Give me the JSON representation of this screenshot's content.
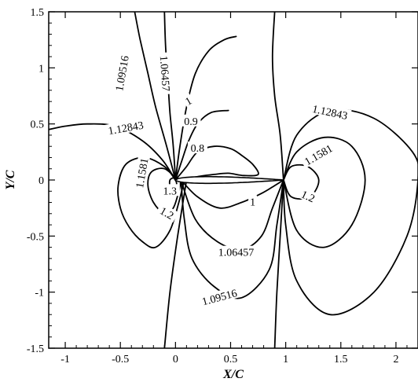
{
  "chart_data": {
    "type": "contour",
    "title": "",
    "xlabel": "X/C",
    "ylabel": "Y/C",
    "xlim": [
      -1.15,
      2.2
    ],
    "ylim": [
      -1.5,
      1.5
    ],
    "x_ticks": [
      "-1",
      "-0.5",
      "0",
      "0.5",
      "1",
      "1.5",
      "2"
    ],
    "y_ticks": [
      "1.5",
      "1",
      "0.5",
      "0",
      "-0.5",
      "-1",
      "-1.5"
    ],
    "grid": false,
    "legend": "none",
    "airfoil": {
      "leading_edge": [
        0.0,
        0.0
      ],
      "trailing_edge": [
        0.98,
        0.0
      ],
      "max_thickness": 0.06
    },
    "contours": [
      {
        "level": "1.06457",
        "points": [
          [
            0.0,
            0.0
          ],
          [
            -0.02,
            0.3
          ],
          [
            -0.05,
            0.6
          ],
          [
            -0.07,
            0.9
          ],
          [
            -0.09,
            1.2
          ],
          [
            -0.1,
            1.5
          ]
        ]
      },
      {
        "level": "1.09516",
        "points": [
          [
            0.0,
            0.0
          ],
          [
            -0.08,
            0.3
          ],
          [
            -0.18,
            0.65
          ],
          [
            -0.25,
            0.95
          ],
          [
            -0.32,
            1.25
          ],
          [
            -0.37,
            1.5
          ]
        ]
      },
      {
        "level": "1.12843",
        "points": [
          [
            0.0,
            0.0
          ],
          [
            -0.12,
            0.18
          ],
          [
            -0.3,
            0.35
          ],
          [
            -0.55,
            0.48
          ],
          [
            -0.8,
            0.5
          ],
          [
            -1.0,
            0.48
          ],
          [
            -1.15,
            0.45
          ]
        ]
      },
      {
        "level": "1.1581",
        "points": [
          [
            0.0,
            0.0
          ],
          [
            -0.1,
            0.12
          ],
          [
            -0.28,
            0.2
          ],
          [
            -0.45,
            0.14
          ],
          [
            -0.52,
            -0.05
          ],
          [
            -0.5,
            -0.25
          ],
          [
            -0.42,
            -0.42
          ],
          [
            -0.3,
            -0.55
          ],
          [
            -0.18,
            -0.6
          ],
          [
            -0.05,
            -0.45
          ],
          [
            0.03,
            -0.2
          ],
          [
            0.08,
            0.0
          ]
        ]
      },
      {
        "level": "1.2",
        "points": [
          [
            0.02,
            0.0
          ],
          [
            -0.1,
            0.1
          ],
          [
            -0.22,
            0.07
          ],
          [
            -0.25,
            -0.05
          ],
          [
            -0.2,
            -0.2
          ],
          [
            -0.1,
            -0.3
          ],
          [
            -0.02,
            -0.25
          ],
          [
            0.03,
            -0.1
          ],
          [
            0.05,
            0.0
          ]
        ]
      },
      {
        "level": "1.3",
        "points": [
          [
            -0.02,
            0.02
          ],
          [
            -0.05,
            0.0
          ],
          [
            -0.05,
            -0.05
          ],
          [
            -0.02,
            -0.07
          ],
          [
            0.01,
            -0.04
          ],
          [
            0.0,
            0.0
          ],
          [
            -0.02,
            0.02
          ]
        ]
      },
      {
        "level": "1",
        "points": [
          [
            0.0,
            0.0
          ],
          [
            0.04,
            0.3
          ],
          [
            0.1,
            0.65
          ],
          [
            0.18,
            0.95
          ],
          [
            0.3,
            1.15
          ],
          [
            0.44,
            1.25
          ],
          [
            0.55,
            1.28
          ]
        ]
      },
      {
        "level": "0.9",
        "points": [
          [
            0.0,
            0.0
          ],
          [
            0.06,
            0.18
          ],
          [
            0.12,
            0.35
          ],
          [
            0.2,
            0.5
          ],
          [
            0.32,
            0.6
          ],
          [
            0.48,
            0.62
          ]
        ]
      },
      {
        "level": "0.8",
        "points": [
          [
            0.0,
            0.0
          ],
          [
            0.1,
            0.12
          ],
          [
            0.2,
            0.25
          ],
          [
            0.35,
            0.3
          ],
          [
            0.5,
            0.28
          ],
          [
            0.6,
            0.22
          ],
          [
            0.7,
            0.14
          ],
          [
            0.75,
            0.05
          ],
          [
            0.62,
            0.04
          ],
          [
            0.48,
            0.06
          ],
          [
            0.35,
            0.05
          ],
          [
            0.2,
            0.03
          ],
          [
            0.05,
            0.0
          ]
        ]
      },
      {
        "level": "1.06457",
        "points": [
          [
            0.05,
            0.0
          ],
          [
            0.18,
            -0.35
          ],
          [
            0.38,
            -0.55
          ],
          [
            0.6,
            -0.62
          ],
          [
            0.78,
            -0.5
          ],
          [
            0.88,
            -0.25
          ],
          [
            0.98,
            0.0
          ]
        ]
      },
      {
        "level": "1.09516",
        "points": [
          [
            0.05,
            0.0
          ],
          [
            0.08,
            -0.35
          ],
          [
            0.15,
            -0.7
          ],
          [
            0.35,
            -0.95
          ],
          [
            0.6,
            -1.05
          ],
          [
            0.85,
            -0.8
          ],
          [
            0.92,
            -0.4
          ],
          [
            0.98,
            0.0
          ]
        ]
      },
      {
        "level": "1",
        "points": [
          [
            0.05,
            0.0
          ],
          [
            0.2,
            -0.15
          ],
          [
            0.4,
            -0.25
          ],
          [
            0.6,
            -0.2
          ],
          [
            0.78,
            -0.12
          ],
          [
            0.9,
            -0.05
          ],
          [
            0.98,
            0.0
          ]
        ]
      },
      {
        "level": "1",
        "points": [
          [
            0.1,
            0.0
          ],
          [
            0.02,
            -0.5
          ],
          [
            -0.05,
            -1.0
          ],
          [
            -0.1,
            -1.5
          ]
        ]
      },
      {
        "level": "1",
        "points": [
          [
            0.98,
            0.0
          ],
          [
            0.95,
            0.4
          ],
          [
            0.9,
            0.75
          ],
          [
            0.88,
            1.1
          ],
          [
            0.9,
            1.5
          ]
        ]
      },
      {
        "level": "1",
        "points": [
          [
            0.98,
            0.0
          ],
          [
            0.95,
            -0.5
          ],
          [
            0.92,
            -1.0
          ],
          [
            0.9,
            -1.5
          ]
        ]
      },
      {
        "level": "1.12843",
        "points": [
          [
            0.98,
            0.0
          ],
          [
            1.1,
            0.4
          ],
          [
            1.4,
            0.62
          ],
          [
            1.8,
            0.55
          ],
          [
            2.15,
            0.25
          ],
          [
            2.2,
            0.0
          ],
          [
            2.1,
            -0.5
          ],
          [
            1.8,
            -1.0
          ],
          [
            1.4,
            -1.2
          ],
          [
            1.1,
            -0.9
          ],
          [
            1.0,
            -0.4
          ],
          [
            0.98,
            0.0
          ]
        ]
      },
      {
        "level": "1.1581",
        "points": [
          [
            0.98,
            0.0
          ],
          [
            1.1,
            0.25
          ],
          [
            1.35,
            0.38
          ],
          [
            1.6,
            0.3
          ],
          [
            1.72,
            0.0
          ],
          [
            1.6,
            -0.4
          ],
          [
            1.35,
            -0.6
          ],
          [
            1.1,
            -0.45
          ],
          [
            0.98,
            0.0
          ]
        ]
      },
      {
        "level": "1.2",
        "points": [
          [
            0.98,
            0.0
          ],
          [
            1.05,
            0.12
          ],
          [
            1.2,
            0.12
          ],
          [
            1.3,
            0.0
          ],
          [
            1.22,
            -0.15
          ],
          [
            1.05,
            -0.15
          ],
          [
            0.98,
            0.0
          ]
        ]
      }
    ],
    "contour_labels": [
      {
        "text": "1.09516",
        "x": -0.48,
        "y": 0.95,
        "rotate": 80
      },
      {
        "text": "1.06457",
        "x": -0.1,
        "y": 0.95,
        "rotate": -86
      },
      {
        "text": "1.12843",
        "x": -0.45,
        "y": 0.46,
        "rotate": 10
      },
      {
        "text": "1.12843",
        "x": 1.4,
        "y": 0.6,
        "rotate": -12
      },
      {
        "text": "1",
        "x": 0.12,
        "y": 0.7,
        "rotate": 30
      },
      {
        "text": "0.9",
        "x": 0.14,
        "y": 0.52,
        "rotate": 0
      },
      {
        "text": "0.8",
        "x": 0.2,
        "y": 0.28,
        "rotate": 0
      },
      {
        "text": "1.1581",
        "x": -0.3,
        "y": 0.06,
        "rotate": 80
      },
      {
        "text": "1.1581",
        "x": 1.3,
        "y": 0.22,
        "rotate": 30
      },
      {
        "text": "1.3",
        "x": -0.05,
        "y": -0.1,
        "rotate": 0
      },
      {
        "text": "1.2",
        "x": -0.08,
        "y": -0.3,
        "rotate": -30
      },
      {
        "text": "1.2",
        "x": 1.2,
        "y": -0.15,
        "rotate": -25
      },
      {
        "text": "1",
        "x": 0.7,
        "y": -0.2,
        "rotate": 0
      },
      {
        "text": "1.06457",
        "x": 0.55,
        "y": -0.65,
        "rotate": 0
      },
      {
        "text": "1.09516",
        "x": 0.4,
        "y": -1.05,
        "rotate": 15
      }
    ]
  }
}
